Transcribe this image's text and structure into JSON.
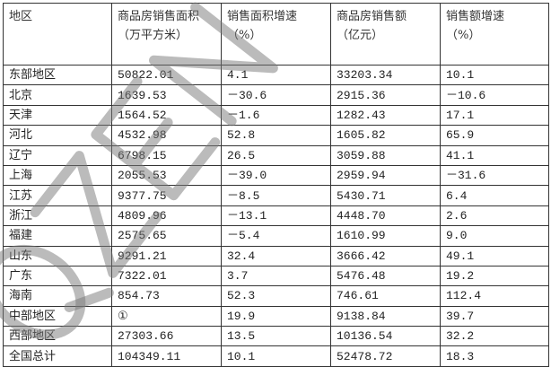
{
  "watermark": "QZEN",
  "table": {
    "headers": [
      {
        "line1": "地区",
        "line2": ""
      },
      {
        "line1": "商品房销售面积",
        "line2": "（万平方米）"
      },
      {
        "line1": "销售面积增速",
        "line2": "（%）"
      },
      {
        "line1": "商品房销售额",
        "line2": "（亿元）"
      },
      {
        "line1": "销售额增速",
        "line2": "（%）"
      }
    ],
    "rows": [
      [
        "东部地区",
        "50822.01",
        "4.1",
        "33203.34",
        "10.1"
      ],
      [
        "北京",
        "1639.53",
        "－30.6",
        "2915.36",
        "－10.6"
      ],
      [
        "天津",
        "1564.52",
        "－1.6",
        "1282.43",
        "17.1"
      ],
      [
        "河北",
        "4532.98",
        "52.8",
        "1605.82",
        "65.9"
      ],
      [
        "辽宁",
        "6798.15",
        "26.5",
        "3059.88",
        "41.1"
      ],
      [
        "上海",
        "2055.53",
        "－39.0",
        "2959.94",
        "－31.6"
      ],
      [
        "江苏",
        "9377.75",
        "－8.5",
        "5430.71",
        "6.4"
      ],
      [
        "浙江",
        "4809.96",
        "－13.1",
        "4448.70",
        "2.6"
      ],
      [
        "福建",
        "2575.65",
        "－5.4",
        "1610.99",
        "9.0"
      ],
      [
        "山东",
        "9291.21",
        "32.4",
        "3666.42",
        "49.1"
      ],
      [
        "广东",
        "7322.01",
        "3.7",
        "5476.48",
        "19.2"
      ],
      [
        "海南",
        "854.73",
        "52.3",
        "746.61",
        "112.4"
      ],
      [
        "中部地区",
        "①",
        "19.9",
        "9138.84",
        "39.7"
      ],
      [
        "西部地区",
        "27303.66",
        "13.5",
        "10136.54",
        "32.2"
      ],
      [
        "全国总计",
        "104349.11",
        "10.1",
        "52478.72",
        "18.3"
      ]
    ]
  }
}
